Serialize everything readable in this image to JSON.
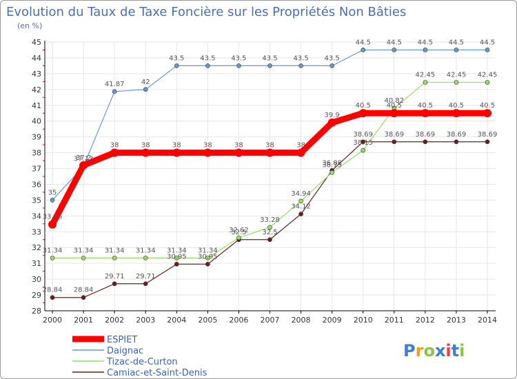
{
  "colors": {
    "background": "#ffffff",
    "axis": "#000000",
    "grid": "#e6e6e6",
    "title": "#4a6fb0",
    "tick_mark": "#ff0000"
  },
  "logo": {
    "letters": [
      "P",
      "r",
      "o",
      "x",
      "i",
      "t",
      "i"
    ],
    "colors": [
      "#3a7fd5",
      "#e8a020",
      "#8cc63f",
      "#3a7fd5",
      "#e84040",
      "#3a7fd5",
      "#8cc63f"
    ]
  },
  "chart_data": {
    "type": "line",
    "title": "Evolution du Taux de Taxe Foncière sur les Propriétés Non Bâties",
    "subtitle": "(en %)",
    "xlabel": "",
    "ylabel": "",
    "x": [
      2000,
      2001,
      2002,
      2003,
      2004,
      2005,
      2006,
      2007,
      2008,
      2009,
      2010,
      2011,
      2012,
      2013,
      2014
    ],
    "ylim": [
      28,
      45
    ],
    "yticks": [
      28,
      29,
      30,
      31,
      32,
      33,
      34,
      35,
      36,
      37,
      38,
      39,
      40,
      41,
      42,
      43,
      44,
      45
    ],
    "grid": true,
    "legend_position": "bottom-left",
    "series": [
      {
        "name": "Camiac-et-Saint-Denis",
        "color": "#6b1f1f",
        "values": [
          28.84,
          28.84,
          29.71,
          29.71,
          30.95,
          30.95,
          32.5,
          32.5,
          34.12,
          36.88,
          38.69,
          38.69,
          38.69,
          38.69,
          38.69
        ],
        "labels": [
          "28.84",
          "28.84",
          "29.71",
          "29.71",
          "30.95",
          "30.95",
          "32.5",
          "32.5",
          "34.12",
          "36.88",
          "38.69",
          "38.69",
          "38.69",
          "38.69",
          "38.69"
        ]
      },
      {
        "name": "Tizac-de-Curton",
        "color": "#99dd66",
        "values": [
          31.34,
          31.34,
          31.34,
          31.34,
          31.34,
          31.34,
          32.62,
          33.28,
          34.94,
          36.75,
          38.15,
          40.82,
          42.45,
          42.45,
          42.45
        ],
        "labels": [
          "31.34",
          "31.34",
          "31.34",
          "31.34",
          "31.34",
          "31.34",
          "32.62",
          "33.28",
          "34.94",
          "36.75",
          "38.15",
          "40.82",
          "42.45",
          "42.45",
          "42.45"
        ]
      },
      {
        "name": "Daignac",
        "color": "#6699cc",
        "values": [
          35,
          37.13,
          41.87,
          42,
          43.5,
          43.5,
          43.5,
          43.5,
          43.5,
          43.5,
          44.5,
          44.5,
          44.5,
          44.5,
          44.5
        ],
        "labels": [
          "35",
          "37.13",
          "41.87",
          "42",
          "43.5",
          "43.5",
          "43.5",
          "43.5",
          "43.5",
          "43.5",
          "44.5",
          "44.5",
          "44.5",
          "44.5",
          "44.5"
        ]
      },
      {
        "name": "ESPIET",
        "color": "#ff0000",
        "values": [
          33.46,
          37.2,
          38,
          38,
          38,
          38,
          38,
          38,
          38,
          39.9,
          40.5,
          40.5,
          40.5,
          40.5,
          40.5
        ],
        "labels": [
          "33.46",
          "37.2",
          "38",
          "38",
          "38",
          "38",
          "38",
          "38",
          "38",
          "39.9",
          "40.5",
          "40.5",
          "40.5",
          "40.5",
          "40.5"
        ]
      }
    ],
    "legend_order": [
      "ESPIET",
      "Daignac",
      "Tizac-de-Curton",
      "Camiac-et-Saint-Denis"
    ]
  }
}
